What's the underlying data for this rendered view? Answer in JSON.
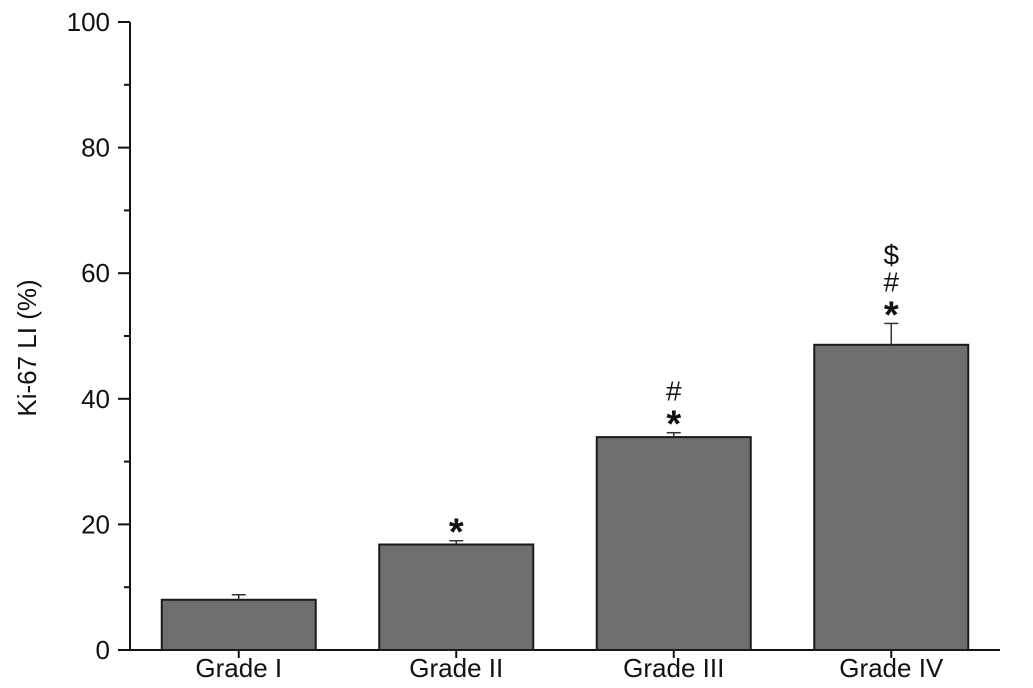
{
  "chart_data": {
    "type": "bar",
    "title": "",
    "xlabel": "",
    "ylabel": "Ki-67 LI (%)",
    "ylim": [
      0,
      100
    ],
    "yticks": [
      0,
      20,
      40,
      60,
      80,
      100
    ],
    "yticks_minor": [
      10,
      30,
      50,
      70,
      90
    ],
    "categories": [
      "Grade I",
      "Grade II",
      "Grade III",
      "Grade IV"
    ],
    "values": [
      8.0,
      16.8,
      33.9,
      48.6
    ],
    "errors": [
      0.8,
      0.6,
      0.7,
      3.4
    ],
    "annotations": [
      [],
      [
        "*"
      ],
      [
        "#",
        "*"
      ],
      [
        "$",
        "#",
        "*"
      ]
    ],
    "grid": false,
    "legend": "none",
    "colors": {
      "bar": "#6e6e6e",
      "bar_edge": "#1a1a1a",
      "axis": "#111111"
    }
  }
}
